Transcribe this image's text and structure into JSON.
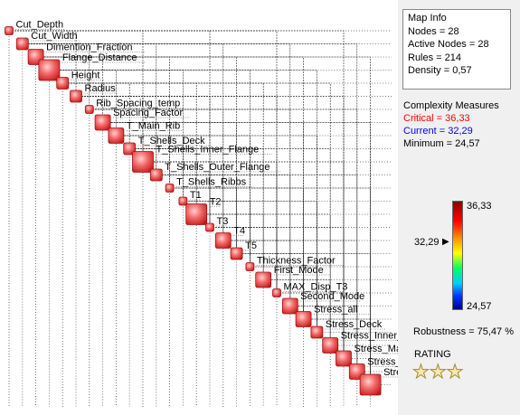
{
  "matrix": {
    "nodes": [
      {
        "label": "Cut_Depth",
        "weight": 1
      },
      {
        "label": "Cut_Width",
        "weight": 2
      },
      {
        "label": "Dimention_Fraction",
        "weight": 3
      },
      {
        "label": "Flange_Distance",
        "weight": 4
      },
      {
        "label": "Height",
        "weight": 2
      },
      {
        "label": "Radius",
        "weight": 2
      },
      {
        "label": "Rib_Spacing_temp",
        "weight": 1
      },
      {
        "label": "Spacing_Factor",
        "weight": 3
      },
      {
        "label": "T_Main_Rib",
        "weight": 3
      },
      {
        "label": "T_Shells_Deck",
        "weight": 2
      },
      {
        "label": "T_Shells_Inner_Flange",
        "weight": 4
      },
      {
        "label": "T_Shells_Outer_Flange",
        "weight": 2
      },
      {
        "label": "T_Shells_Ribbs",
        "weight": 1
      },
      {
        "label": "T1",
        "weight": 1
      },
      {
        "label": "T2",
        "weight": 4
      },
      {
        "label": "T3",
        "weight": 1
      },
      {
        "label": "T4",
        "weight": 3
      },
      {
        "label": "T5",
        "weight": 2
      },
      {
        "label": "Thickness_Factor",
        "weight": 1
      },
      {
        "label": "First_Mode",
        "weight": 3
      },
      {
        "label": "MAX_Disp_T3",
        "weight": 1
      },
      {
        "label": "Second_Mode",
        "weight": 3
      },
      {
        "label": "Stress_all",
        "weight": 3
      },
      {
        "label": "Stress_Deck",
        "weight": 2
      },
      {
        "label": "Stress_Inner_Flange",
        "weight": 3
      },
      {
        "label": "Stress_Main_Rib",
        "weight": 3
      },
      {
        "label": "Stress_Outer_Flange",
        "weight": 3
      },
      {
        "label": "Stress_Ribbs",
        "weight": 4
      }
    ]
  },
  "map_info": {
    "title": "Map Info",
    "nodes": "Nodes = 28",
    "active_nodes": "Active Nodes = 28",
    "rules": "Rules = 214",
    "density": "Density = 0,57"
  },
  "complexity": {
    "title": "Complexity Measures",
    "critical": "Critical = 36,33",
    "current": "Current = 32,29",
    "minimum": "Minimum = 24,57",
    "critical_color": "#ff0000",
    "current_color": "#0000ff"
  },
  "scale": {
    "max_label": "36,33",
    "min_label": "24,57",
    "current_label": "32,29",
    "max": 36.33,
    "min": 24.57,
    "current": 32.29
  },
  "robustness": "Robustness = 75,47 %",
  "rating": {
    "label": "RATING",
    "stars": 3,
    "star_icon": "star-icon"
  }
}
